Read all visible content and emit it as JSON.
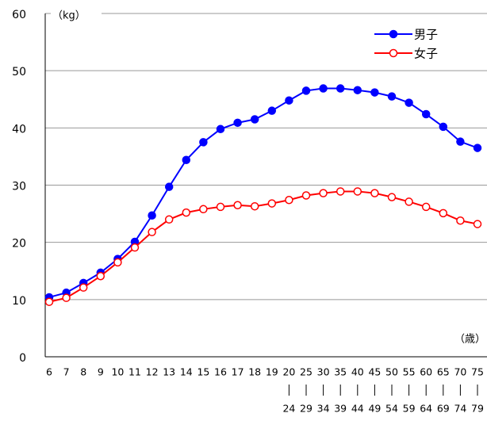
{
  "chart_data": {
    "type": "line",
    "y_label": "（kg）",
    "x_label": "（歳）",
    "categories": [
      "6",
      "7",
      "8",
      "9",
      "10",
      "11",
      "12",
      "13",
      "14",
      "15",
      "16",
      "17",
      "18",
      "19",
      "20",
      "25",
      "30",
      "35",
      "40",
      "45",
      "50",
      "55",
      "60",
      "65",
      "70",
      "75"
    ],
    "category_range_ends": [
      null,
      null,
      null,
      null,
      null,
      null,
      null,
      null,
      null,
      null,
      null,
      null,
      null,
      null,
      "24",
      "29",
      "34",
      "39",
      "44",
      "49",
      "54",
      "59",
      "64",
      "69",
      "74",
      "79"
    ],
    "series": [
      {
        "name": "男子",
        "color": "#0000ff",
        "marker": "filled",
        "values": [
          10.4,
          11.2,
          12.9,
          14.7,
          17.1,
          20.1,
          24.7,
          29.7,
          34.4,
          37.5,
          39.8,
          40.9,
          41.5,
          43.0,
          44.8,
          46.5,
          46.9,
          46.9,
          46.6,
          46.2,
          45.5,
          44.4,
          42.4,
          40.2,
          37.6,
          36.5
        ]
      },
      {
        "name": "女子",
        "color": "#ff0000",
        "marker": "hollow",
        "values": [
          9.6,
          10.3,
          12.1,
          14.1,
          16.5,
          19.1,
          21.8,
          24.0,
          25.2,
          25.8,
          26.2,
          26.5,
          26.3,
          26.8,
          27.4,
          28.2,
          28.6,
          28.9,
          28.9,
          28.6,
          27.9,
          27.1,
          26.2,
          25.1,
          23.8,
          23.2
        ]
      }
    ],
    "ylim": [
      0,
      60
    ],
    "yticks": [
      0,
      10,
      20,
      30,
      40,
      50,
      60
    ],
    "grid": true,
    "legend": "upper right"
  }
}
